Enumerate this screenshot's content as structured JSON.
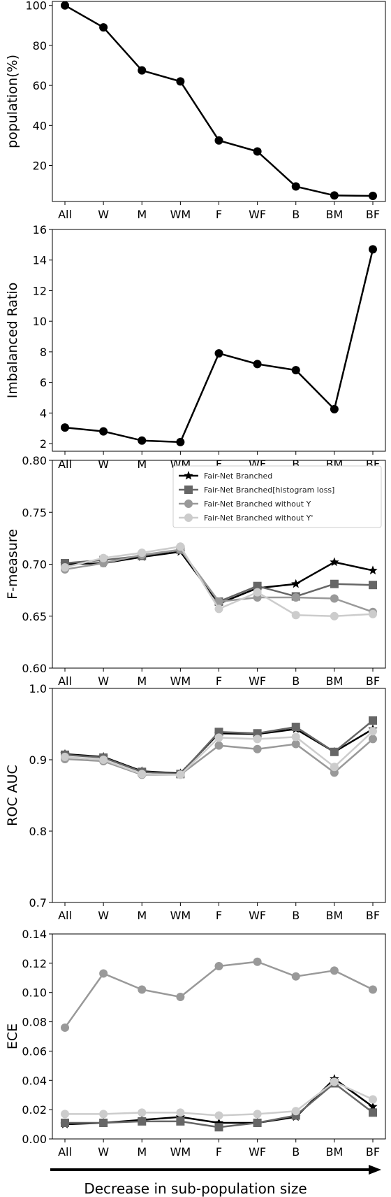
{
  "footer": {
    "xlabel": "Decrease in sub-population size"
  },
  "chart_data": [
    {
      "id": "population",
      "type": "line",
      "ylabel": "population(%)",
      "categories": [
        "All",
        "W",
        "M",
        "WM",
        "F",
        "WF",
        "B",
        "BM",
        "BF"
      ],
      "ylim": [
        2,
        102
      ],
      "yticks": [
        20,
        40,
        60,
        80,
        100
      ],
      "ytick_labels": [
        "20",
        "40",
        "60",
        "80",
        "100"
      ],
      "series": [
        {
          "values": [
            100,
            89,
            67.5,
            62,
            32.5,
            27,
            9.5,
            5,
            4.8
          ],
          "color": "#000000",
          "marker": "circle"
        }
      ]
    },
    {
      "id": "imbalanced",
      "type": "line",
      "ylabel": "Imbalanced Ratio",
      "categories": [
        "All",
        "W",
        "M",
        "WM",
        "F",
        "WF",
        "B",
        "BM",
        "BF"
      ],
      "ylim": [
        1.5,
        16
      ],
      "yticks": [
        2,
        4,
        6,
        8,
        10,
        12,
        14,
        16
      ],
      "ytick_labels": [
        "2",
        "4",
        "6",
        "8",
        "10",
        "12",
        "14",
        "16"
      ],
      "series": [
        {
          "values": [
            3.05,
            2.8,
            2.2,
            2.1,
            7.9,
            7.2,
            6.8,
            4.25,
            14.7
          ],
          "color": "#000000",
          "marker": "circle"
        }
      ]
    },
    {
      "id": "fmeasure",
      "type": "line",
      "ylabel": "F-measure",
      "categories": [
        "All",
        "W",
        "M",
        "WM",
        "F",
        "WF",
        "B",
        "BM",
        "BF"
      ],
      "ylim": [
        0.6,
        0.8
      ],
      "yticks": [
        0.6,
        0.65,
        0.7,
        0.75,
        0.8
      ],
      "ytick_labels": [
        "0.60",
        "0.65",
        "0.70",
        "0.75",
        "0.80"
      ],
      "legend": "top-right",
      "series": [
        {
          "name": "Fair-Net Branched",
          "values": [
            0.7,
            0.701,
            0.707,
            0.712,
            0.662,
            0.677,
            0.681,
            0.702,
            0.694
          ],
          "color": "#000000",
          "marker": "star"
        },
        {
          "name": "Fair-Net Branched[histogram loss]",
          "values": [
            0.701,
            0.704,
            0.708,
            0.714,
            0.664,
            0.679,
            0.669,
            0.681,
            0.68
          ],
          "color": "#666666",
          "marker": "square"
        },
        {
          "name": "Fair-Net Branched without Y",
          "values": [
            0.695,
            0.701,
            0.709,
            0.714,
            0.664,
            0.668,
            0.668,
            0.667,
            0.654
          ],
          "color": "#999999",
          "marker": "circle"
        },
        {
          "name": "Fair-Net Branched without Y'",
          "values": [
            0.697,
            0.706,
            0.711,
            0.717,
            0.657,
            0.673,
            0.651,
            0.65,
            0.652
          ],
          "color": "#cccccc",
          "marker": "circle"
        }
      ]
    },
    {
      "id": "rocauc",
      "type": "line",
      "ylabel": "ROC AUC",
      "categories": [
        "All",
        "W",
        "M",
        "WM",
        "F",
        "WF",
        "B",
        "BM",
        "BF"
      ],
      "ylim": [
        0.7,
        1.0
      ],
      "yticks": [
        0.7,
        0.8,
        0.9,
        1.0
      ],
      "ytick_labels": [
        "0.7",
        "0.8",
        "0.9",
        "1.0"
      ],
      "series": [
        {
          "values": [
            0.908,
            0.904,
            0.884,
            0.881,
            0.937,
            0.936,
            0.943,
            0.911,
            0.943
          ],
          "color": "#000000",
          "marker": "star"
        },
        {
          "values": [
            0.907,
            0.903,
            0.883,
            0.88,
            0.939,
            0.937,
            0.946,
            0.911,
            0.955
          ],
          "color": "#666666",
          "marker": "square"
        },
        {
          "values": [
            0.901,
            0.898,
            0.879,
            0.879,
            0.92,
            0.915,
            0.922,
            0.882,
            0.929
          ],
          "color": "#999999",
          "marker": "circle"
        },
        {
          "values": [
            0.904,
            0.9,
            0.88,
            0.879,
            0.931,
            0.929,
            0.932,
            0.89,
            0.94
          ],
          "color": "#cccccc",
          "marker": "circle"
        }
      ]
    },
    {
      "id": "ece",
      "type": "line",
      "ylabel": "ECE",
      "categories": [
        "All",
        "W",
        "M",
        "WM",
        "F",
        "WF",
        "B",
        "BM",
        "BF"
      ],
      "ylim": [
        0.0,
        0.14
      ],
      "yticks": [
        0.0,
        0.02,
        0.04,
        0.06,
        0.08,
        0.1,
        0.12,
        0.14
      ],
      "ytick_labels": [
        "0.00",
        "0.02",
        "0.04",
        "0.06",
        "0.08",
        "0.10",
        "0.12",
        "0.14"
      ],
      "series": [
        {
          "values": [
            0.01,
            0.011,
            0.013,
            0.015,
            0.011,
            0.011,
            0.015,
            0.041,
            0.022
          ],
          "color": "#000000",
          "marker": "star"
        },
        {
          "values": [
            0.011,
            0.011,
            0.012,
            0.012,
            0.008,
            0.011,
            0.016,
            0.038,
            0.018
          ],
          "color": "#666666",
          "marker": "square"
        },
        {
          "values": [
            0.076,
            0.113,
            0.102,
            0.097,
            0.118,
            0.121,
            0.111,
            0.115,
            0.102
          ],
          "color": "#999999",
          "marker": "circle"
        },
        {
          "values": [
            0.017,
            0.017,
            0.018,
            0.018,
            0.016,
            0.017,
            0.019,
            0.039,
            0.027
          ],
          "color": "#cccccc",
          "marker": "circle"
        }
      ]
    }
  ]
}
